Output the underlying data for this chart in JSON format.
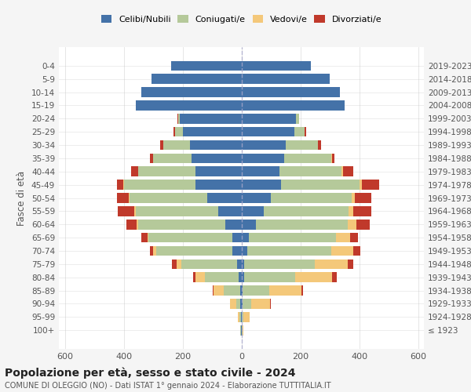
{
  "age_groups": [
    "100+",
    "95-99",
    "90-94",
    "85-89",
    "80-84",
    "75-79",
    "70-74",
    "65-69",
    "60-64",
    "55-59",
    "50-54",
    "45-49",
    "40-44",
    "35-39",
    "30-34",
    "25-29",
    "20-24",
    "15-19",
    "10-14",
    "5-9",
    "0-4"
  ],
  "birth_years": [
    "≤ 1923",
    "1924-1928",
    "1929-1933",
    "1934-1938",
    "1939-1943",
    "1944-1948",
    "1949-1953",
    "1954-1958",
    "1959-1963",
    "1964-1968",
    "1969-1973",
    "1974-1978",
    "1979-1983",
    "1984-1988",
    "1989-1993",
    "1994-1998",
    "1999-2003",
    "2004-2008",
    "2009-2013",
    "2014-2018",
    "2019-2023"
  ],
  "males": {
    "celibi": [
      2,
      2,
      3,
      5,
      10,
      15,
      30,
      30,
      55,
      80,
      115,
      155,
      155,
      170,
      175,
      200,
      210,
      360,
      340,
      305,
      240
    ],
    "coniugati": [
      2,
      4,
      15,
      55,
      115,
      190,
      260,
      285,
      295,
      280,
      265,
      245,
      195,
      130,
      90,
      25,
      5,
      0,
      0,
      0,
      0
    ],
    "vedovi": [
      1,
      5,
      20,
      35,
      30,
      15,
      10,
      5,
      5,
      5,
      3,
      2,
      0,
      0,
      0,
      0,
      0,
      0,
      0,
      0,
      0
    ],
    "divorziati": [
      0,
      0,
      0,
      2,
      10,
      15,
      10,
      20,
      35,
      55,
      40,
      20,
      25,
      10,
      10,
      5,
      2,
      0,
      0,
      0,
      0
    ]
  },
  "females": {
    "nubili": [
      2,
      2,
      3,
      5,
      8,
      10,
      20,
      25,
      50,
      75,
      100,
      135,
      130,
      145,
      150,
      180,
      185,
      350,
      335,
      300,
      235
    ],
    "coniugate": [
      2,
      5,
      30,
      90,
      175,
      240,
      285,
      295,
      310,
      290,
      275,
      265,
      210,
      160,
      110,
      35,
      10,
      0,
      0,
      0,
      0
    ],
    "vedove": [
      3,
      20,
      65,
      110,
      125,
      110,
      75,
      50,
      30,
      15,
      10,
      8,
      5,
      2,
      0,
      0,
      0,
      0,
      0,
      0,
      0
    ],
    "divorziate": [
      0,
      0,
      2,
      5,
      15,
      20,
      25,
      25,
      45,
      60,
      55,
      60,
      35,
      10,
      10,
      5,
      0,
      0,
      0,
      0,
      0
    ]
  },
  "colors": {
    "celibi": "#4472a8",
    "coniugati": "#b5c99a",
    "vedovi": "#f4c87a",
    "divorziati": "#c0392b"
  },
  "title": "Popolazione per età, sesso e stato civile - 2024",
  "subtitle": "COMUNE DI OLEGGIO (NO) - Dati ISTAT 1° gennaio 2024 - Elaborazione TUTTITALIA.IT",
  "ylabel_left": "Fasce di età",
  "xlim": 620,
  "bg_color": "#f5f5f5",
  "plot_bg": "#ffffff",
  "legend_labels": [
    "Celibi/Nubili",
    "Coniugati/e",
    "Vedovi/e",
    "Divorziati/e"
  ]
}
